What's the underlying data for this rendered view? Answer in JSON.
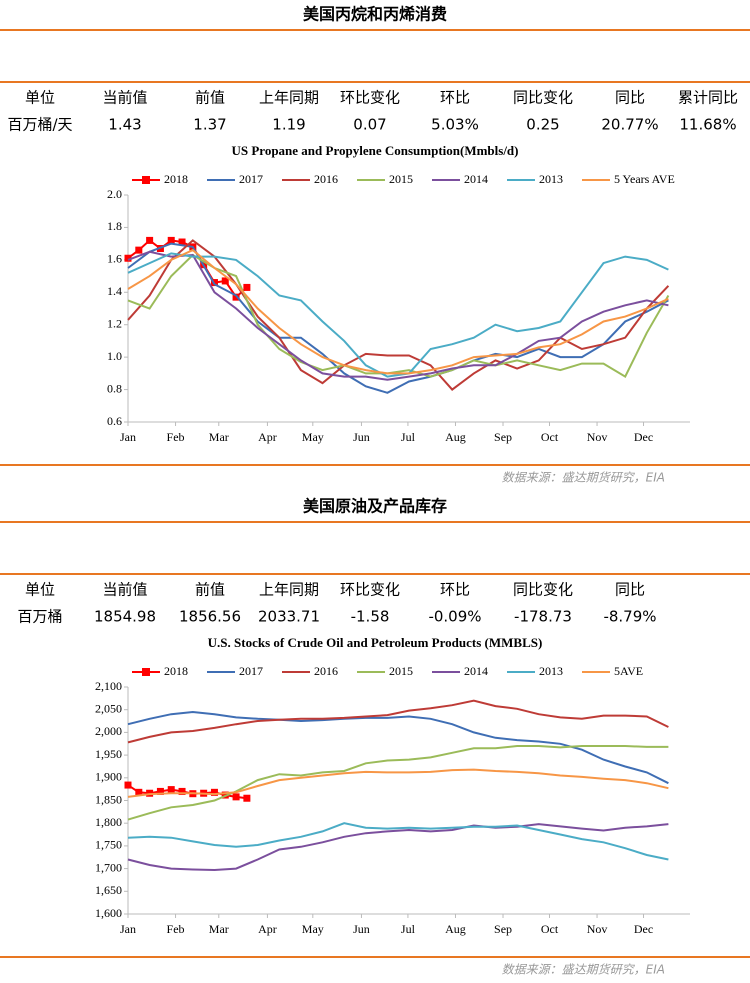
{
  "sections": [
    {
      "title": "美国丙烷和丙烯消费",
      "table": {
        "header": [
          "单位",
          "当前值",
          "前值",
          "上年同期",
          "环比变化",
          "环比",
          "同比变化",
          "同比",
          "累计同比"
        ],
        "rows": [
          [
            "百万桶/天",
            "1.43",
            "1.37",
            "1.19",
            "0.07",
            "5.03%",
            "0.25",
            "20.77%",
            "11.68%"
          ]
        ]
      },
      "source": "数据来源：盛达期货研究，EIA"
    },
    {
      "title": "美国原油及产品库存",
      "table": {
        "header": [
          "单位",
          "当前值",
          "前值",
          "上年同期",
          "环比变化",
          "环比",
          "同比变化",
          "同比"
        ],
        "rows": [
          [
            "百万桶",
            "1854.98",
            "1856.56",
            "2033.71",
            "-1.58",
            "-0.09%",
            "-178.73",
            "-8.79%"
          ]
        ]
      },
      "source": "数据来源：盛达期货研究，EIA"
    }
  ],
  "chart_data": [
    {
      "type": "line",
      "title": "US Propane and Propylene Consumption(Mmbls/d)",
      "legend": "top",
      "xlim": [
        1,
        53
      ],
      "ylim": [
        0.6,
        2.0
      ],
      "xticks": [
        {
          "value": 1,
          "label": "Jan"
        },
        {
          "value": 5.4,
          "label": "Feb"
        },
        {
          "value": 9.4,
          "label": "Mar"
        },
        {
          "value": 13.9,
          "label": "Apr"
        },
        {
          "value": 18.1,
          "label": "May"
        },
        {
          "value": 22.6,
          "label": "Jun"
        },
        {
          "value": 26.9,
          "label": "Jul"
        },
        {
          "value": 31.3,
          "label": "Aug"
        },
        {
          "value": 35.7,
          "label": "Sep"
        },
        {
          "value": 40,
          "label": "Oct"
        },
        {
          "value": 44.4,
          "label": "Nov"
        },
        {
          "value": 48.7,
          "label": "Dec"
        }
      ],
      "yticks": [
        0.6,
        0.8,
        {
          "value": 1,
          "label": "1.0"
        },
        1.2,
        1.4,
        1.6,
        1.8,
        {
          "value": 2,
          "label": "2.0"
        }
      ],
      "x": [
        1,
        3,
        5,
        7,
        9,
        11,
        13,
        15,
        17,
        19,
        21,
        23,
        25,
        27,
        29,
        31,
        33,
        35,
        37,
        39,
        41,
        43,
        45,
        47,
        49,
        51
      ],
      "series": [
        {
          "name": "2018",
          "color": "#ff0000",
          "marker": "square",
          "x": [
            1,
            2,
            3,
            4,
            5,
            6,
            7,
            8,
            9,
            10,
            11,
            12
          ],
          "values": [
            1.61,
            1.66,
            1.72,
            1.67,
            1.72,
            1.71,
            1.68,
            1.57,
            1.46,
            1.47,
            1.37,
            1.43
          ]
        },
        {
          "name": "2017",
          "color": "#3f6eb4",
          "values": [
            1.55,
            1.65,
            1.7,
            1.68,
            1.45,
            1.38,
            1.22,
            1.12,
            1.12,
            1.02,
            0.9,
            0.82,
            0.78,
            0.85,
            0.88,
            0.92,
            0.98,
            1.02,
            1.0,
            1.05,
            1.0,
            1.0,
            1.08,
            1.22,
            1.28,
            1.35
          ]
        },
        {
          "name": "2016",
          "color": "#be3b36",
          "values": [
            1.23,
            1.38,
            1.6,
            1.72,
            1.62,
            1.45,
            1.25,
            1.12,
            0.92,
            0.84,
            0.95,
            1.02,
            1.01,
            1.01,
            0.95,
            0.8,
            0.9,
            0.98,
            0.93,
            0.98,
            1.12,
            1.05,
            1.08,
            1.12,
            1.3,
            1.44
          ]
        },
        {
          "name": "2015",
          "color": "#9bbb59",
          "values": [
            1.35,
            1.3,
            1.5,
            1.63,
            1.55,
            1.5,
            1.2,
            1.05,
            0.97,
            0.92,
            0.95,
            0.9,
            0.9,
            0.92,
            0.88,
            0.92,
            0.98,
            0.95,
            0.98,
            0.95,
            0.92,
            0.96,
            0.96,
            0.88,
            1.15,
            1.38
          ]
        },
        {
          "name": "2014",
          "color": "#7b4f9d",
          "values": [
            1.6,
            1.65,
            1.62,
            1.63,
            1.4,
            1.3,
            1.18,
            1.08,
            0.98,
            0.9,
            0.88,
            0.88,
            0.86,
            0.88,
            0.9,
            0.93,
            0.95,
            0.95,
            1.02,
            1.1,
            1.12,
            1.22,
            1.28,
            1.32,
            1.35,
            1.32
          ]
        },
        {
          "name": "2013",
          "color": "#4bacc6",
          "values": [
            1.52,
            1.58,
            1.64,
            1.62,
            1.62,
            1.6,
            1.5,
            1.38,
            1.35,
            1.22,
            1.1,
            0.95,
            0.88,
            0.9,
            1.05,
            1.08,
            1.12,
            1.2,
            1.16,
            1.18,
            1.22,
            1.4,
            1.58,
            1.62,
            1.6,
            1.54
          ]
        },
        {
          "name": "5 Years AVE",
          "color": "#f79646",
          "values": [
            1.42,
            1.5,
            1.6,
            1.66,
            1.55,
            1.45,
            1.3,
            1.18,
            1.08,
            1.0,
            0.95,
            0.92,
            0.9,
            0.9,
            0.92,
            0.95,
            1.0,
            1.01,
            1.02,
            1.06,
            1.08,
            1.14,
            1.22,
            1.25,
            1.3,
            1.36
          ]
        }
      ]
    },
    {
      "type": "line",
      "title": "U.S.  Stocks of Crude Oil and Petroleum Products  (MMBLS)",
      "legend": "top",
      "xlim": [
        1,
        53
      ],
      "ylim": [
        1600,
        2100
      ],
      "xticks": [
        {
          "value": 1,
          "label": "Jan"
        },
        {
          "value": 5.4,
          "label": "Feb"
        },
        {
          "value": 9.4,
          "label": "Mar"
        },
        {
          "value": 13.9,
          "label": "Apr"
        },
        {
          "value": 18.1,
          "label": "May"
        },
        {
          "value": 22.6,
          "label": "Jun"
        },
        {
          "value": 26.9,
          "label": "Jul"
        },
        {
          "value": 31.3,
          "label": "Aug"
        },
        {
          "value": 35.7,
          "label": "Sep"
        },
        {
          "value": 40,
          "label": "Oct"
        },
        {
          "value": 44.4,
          "label": "Nov"
        },
        {
          "value": 48.7,
          "label": "Dec"
        }
      ],
      "yticks": [
        {
          "value": 1600,
          "label": "1,600"
        },
        {
          "value": 1650,
          "label": "1,650"
        },
        {
          "value": 1700,
          "label": "1,700"
        },
        {
          "value": 1750,
          "label": "1,750"
        },
        {
          "value": 1800,
          "label": "1,800"
        },
        {
          "value": 1850,
          "label": "1,850"
        },
        {
          "value": 1900,
          "label": "1,900"
        },
        {
          "value": 1950,
          "label": "1,950"
        },
        {
          "value": 2000,
          "label": "2,000"
        },
        {
          "value": 2050,
          "label": "2,050"
        },
        {
          "value": 2100,
          "label": "2,100"
        }
      ],
      "x": [
        1,
        3,
        5,
        7,
        9,
        11,
        13,
        15,
        17,
        19,
        21,
        23,
        25,
        27,
        29,
        31,
        33,
        35,
        37,
        39,
        41,
        43,
        45,
        47,
        49,
        51
      ],
      "series": [
        {
          "name": "2018",
          "color": "#ff0000",
          "marker": "square",
          "x": [
            1,
            2,
            3,
            4,
            5,
            6,
            7,
            8,
            9,
            10,
            11,
            12
          ],
          "values": [
            1884,
            1868,
            1866,
            1870,
            1874,
            1870,
            1865,
            1866,
            1868,
            1862,
            1858,
            1855
          ]
        },
        {
          "name": "2017",
          "color": "#3f6eb4",
          "values": [
            2018,
            2030,
            2040,
            2045,
            2040,
            2033,
            2030,
            2028,
            2025,
            2027,
            2030,
            2032,
            2032,
            2035,
            2030,
            2018,
            2000,
            1988,
            1983,
            1980,
            1975,
            1962,
            1940,
            1925,
            1912,
            1888
          ]
        },
        {
          "name": "2016",
          "color": "#be3b36",
          "values": [
            1978,
            1990,
            2000,
            2003,
            2010,
            2018,
            2025,
            2028,
            2030,
            2030,
            2032,
            2035,
            2038,
            2048,
            2053,
            2060,
            2070,
            2058,
            2052,
            2040,
            2033,
            2030,
            2037,
            2037,
            2035,
            2012
          ]
        },
        {
          "name": "2015",
          "color": "#9bbb59",
          "values": [
            1808,
            1822,
            1835,
            1840,
            1850,
            1870,
            1895,
            1908,
            1905,
            1912,
            1915,
            1932,
            1938,
            1940,
            1945,
            1955,
            1965,
            1965,
            1970,
            1970,
            1967,
            1970,
            1970,
            1970,
            1968,
            1968
          ]
        },
        {
          "name": "2014",
          "color": "#7b4f9d",
          "values": [
            1720,
            1708,
            1700,
            1698,
            1697,
            1700,
            1720,
            1742,
            1748,
            1758,
            1770,
            1778,
            1782,
            1785,
            1782,
            1785,
            1795,
            1790,
            1792,
            1798,
            1793,
            1788,
            1784,
            1790,
            1793,
            1798
          ]
        },
        {
          "name": "2013",
          "color": "#4bacc6",
          "values": [
            1768,
            1770,
            1768,
            1760,
            1752,
            1748,
            1752,
            1762,
            1770,
            1782,
            1800,
            1790,
            1788,
            1790,
            1788,
            1790,
            1792,
            1792,
            1795,
            1785,
            1775,
            1765,
            1758,
            1745,
            1730,
            1720
          ]
        },
        {
          "name": "5AVE",
          "color": "#f79646",
          "values": [
            1858,
            1864,
            1866,
            1866,
            1864,
            1868,
            1882,
            1895,
            1900,
            1905,
            1910,
            1913,
            1912,
            1912,
            1913,
            1917,
            1918,
            1915,
            1913,
            1910,
            1905,
            1902,
            1898,
            1895,
            1888,
            1877
          ]
        }
      ]
    }
  ]
}
